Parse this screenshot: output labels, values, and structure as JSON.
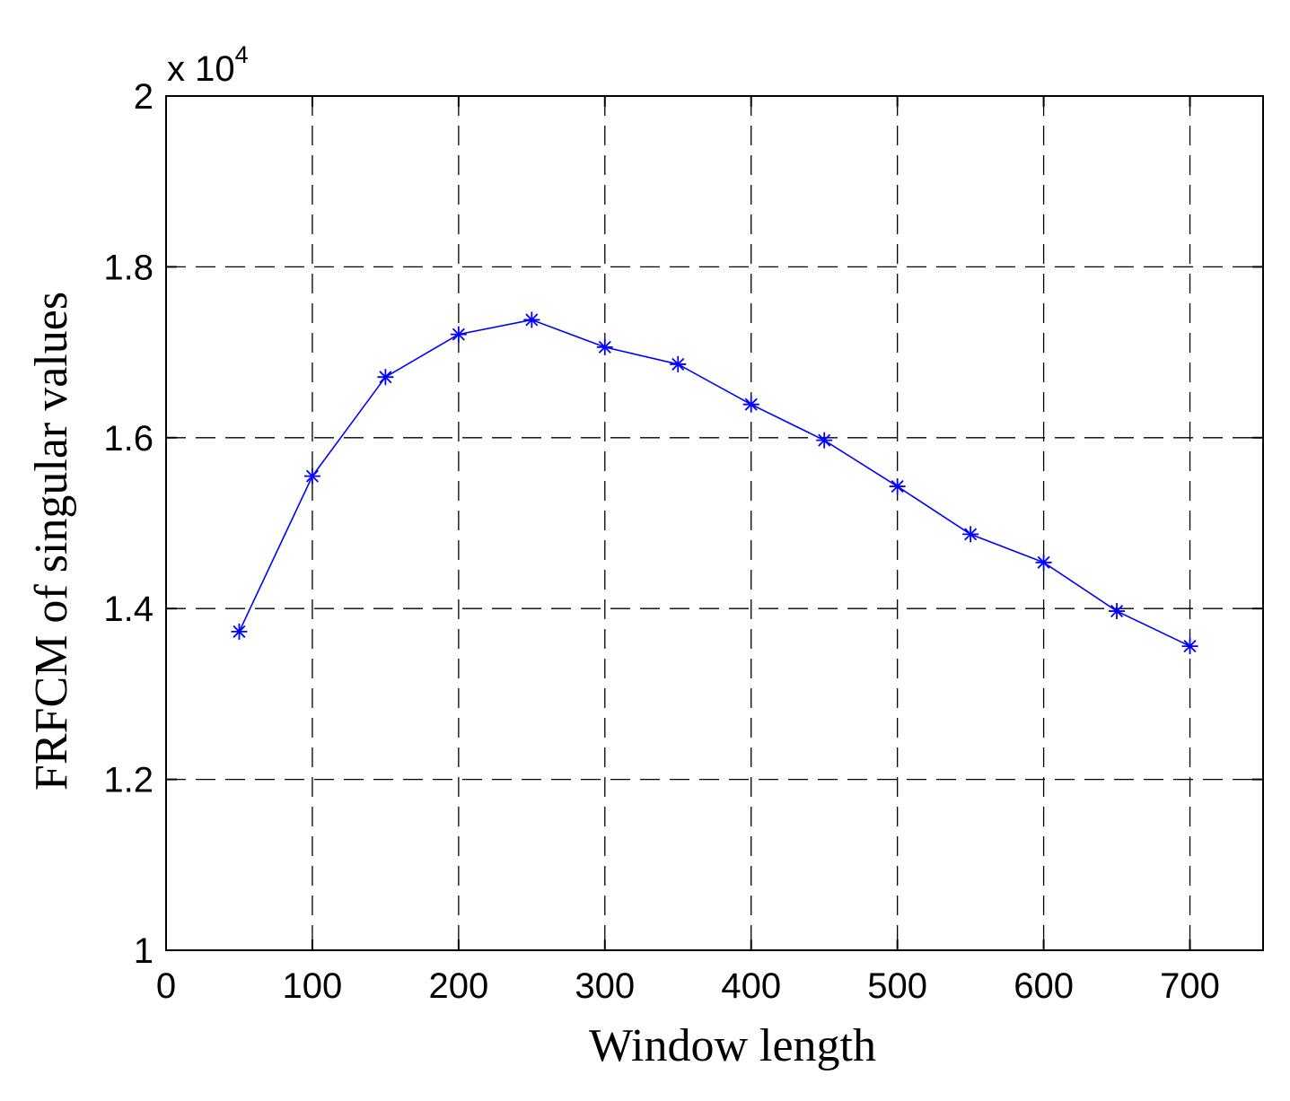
{
  "chart_data": {
    "type": "line",
    "title": "",
    "xlabel": "Window length",
    "ylabel": "FRFCM of singular values",
    "y_multiplier_text": "x 10",
    "y_multiplier_exponent": "4",
    "xlim": [
      0,
      750
    ],
    "ylim": [
      1,
      2
    ],
    "x_ticks": [
      0,
      100,
      200,
      300,
      400,
      500,
      600,
      700
    ],
    "x_tick_labels": [
      "0",
      "100",
      "200",
      "300",
      "400",
      "500",
      "600",
      "700"
    ],
    "y_ticks": [
      1,
      1.2,
      1.4,
      1.6,
      1.8,
      2
    ],
    "y_tick_labels": [
      "1",
      "1.2",
      "1.4",
      "1.6",
      "1.8",
      "2"
    ],
    "grid": true,
    "grid_style": "dashed",
    "series": [
      {
        "marker": "asterisk",
        "color": "#0000ff",
        "x": [
          50,
          100,
          150,
          200,
          250,
          300,
          350,
          400,
          450,
          500,
          550,
          600,
          650,
          700
        ],
        "y": [
          1.373,
          1.555,
          1.671,
          1.721,
          1.738,
          1.706,
          1.686,
          1.639,
          1.597,
          1.543,
          1.487,
          1.454,
          1.397,
          1.356
        ]
      }
    ]
  }
}
